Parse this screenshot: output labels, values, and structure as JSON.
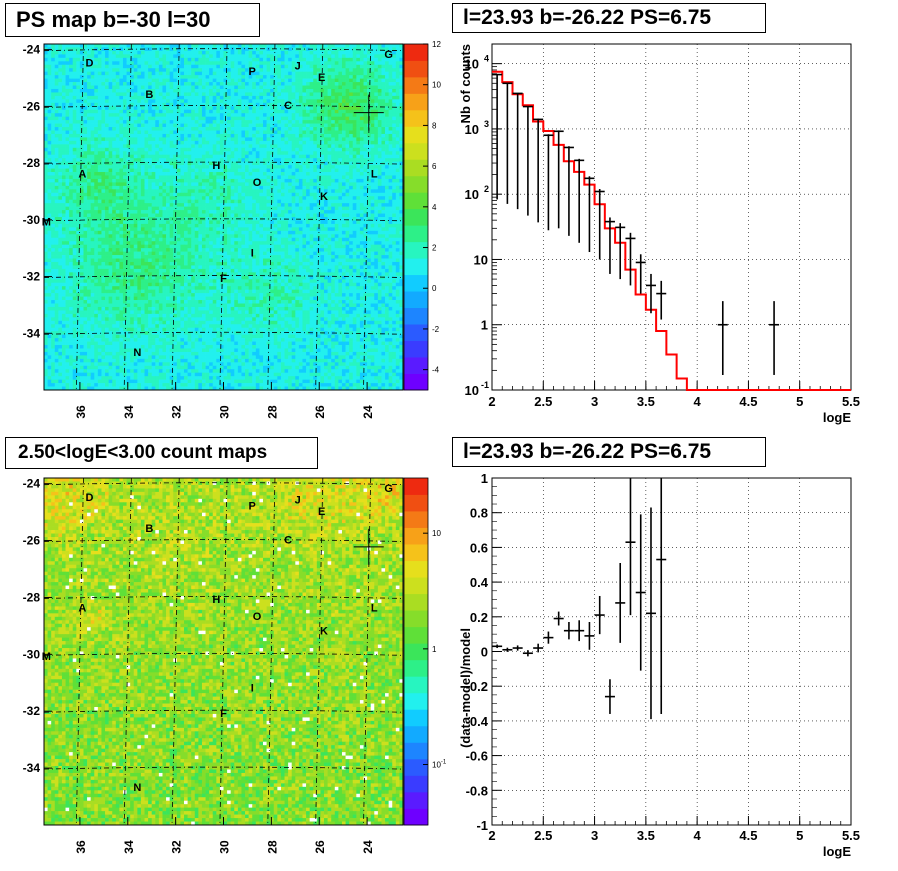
{
  "titles": {
    "top_left": "PS map b=-30 l=30",
    "top_right": "l=23.93 b=-26.22 PS=6.75",
    "bottom_left": "2.50<logE<3.00 count maps",
    "bottom_right": "l=23.93 b=-26.22 PS=6.75"
  },
  "colors": {
    "model_line": "#ff0000",
    "data_points": "#000000",
    "grid": "#000000"
  },
  "chart_data": [
    {
      "type": "heatmap",
      "name": "ps_map",
      "xlim": [
        37.5,
        22.5
      ],
      "ylim": [
        -36,
        -23.8
      ],
      "xticks": [
        "36",
        "34",
        "32",
        "30",
        "28",
        "26",
        "24"
      ],
      "yticks": [
        "-24",
        "-26",
        "-28",
        "-30",
        "-32",
        "-34"
      ],
      "colorbar": {
        "scale": "linear",
        "range": [
          -5,
          12
        ],
        "ticks": [
          "12",
          "10",
          "8",
          "6",
          "4",
          "2",
          "0",
          "-2",
          "-4"
        ]
      },
      "markers": [
        {
          "label": "D",
          "l": 35.6,
          "b": -24.6
        },
        {
          "label": "B",
          "l": 33.1,
          "b": -25.7
        },
        {
          "label": "P",
          "l": 28.8,
          "b": -24.9
        },
        {
          "label": "J",
          "l": 26.9,
          "b": -24.7
        },
        {
          "label": "E",
          "l": 25.9,
          "b": -25.1
        },
        {
          "label": "G",
          "l": 23.1,
          "b": -24.3
        },
        {
          "label": "C",
          "l": 27.3,
          "b": -26.1
        },
        {
          "label": "H",
          "l": 30.3,
          "b": -28.2
        },
        {
          "label": "A",
          "l": 35.9,
          "b": -28.5
        },
        {
          "label": "O",
          "l": 28.6,
          "b": -28.8
        },
        {
          "label": "L",
          "l": 23.7,
          "b": -28.5
        },
        {
          "label": "K",
          "l": 25.8,
          "b": -29.3
        },
        {
          "label": "M",
          "l": 37.4,
          "b": -30.2
        },
        {
          "label": "I",
          "l": 28.8,
          "b": -31.3
        },
        {
          "label": "F",
          "l": 30.0,
          "b": -32.2
        },
        {
          "label": "N",
          "l": 33.6,
          "b": -34.8
        }
      ]
    },
    {
      "type": "line",
      "name": "spectrum",
      "title": "l=23.93 b=-26.22 PS=6.75",
      "xlabel": "logE",
      "ylabel": "Nb of counts",
      "xlim": [
        2,
        5.5
      ],
      "ylim": [
        0.1,
        20000
      ],
      "yscale": "log",
      "xticks": [
        "2",
        "2.5",
        "3",
        "3.5",
        "4",
        "4.5",
        "5",
        "5.5"
      ],
      "grid": true,
      "data": {
        "x": [
          2.05,
          2.15,
          2.25,
          2.35,
          2.45,
          2.55,
          2.65,
          2.75,
          2.85,
          2.95,
          3.05,
          3.15,
          3.25,
          3.35,
          3.45,
          3.55,
          3.65,
          4.25,
          4.75
        ],
        "y": [
          6800,
          5000,
          3500,
          2200,
          1400,
          800,
          920,
          520,
          330,
          175,
          110,
          38,
          31,
          21,
          9,
          4,
          3,
          1,
          1
        ],
        "yerr_low": [
          6717,
          4929,
          3441,
          2153,
          1363,
          772,
          890,
          497,
          312,
          162,
          100,
          32,
          26,
          17,
          6,
          2.5,
          1.8,
          0.83,
          0.83
        ],
        "yerr_high": [
          6883,
          5071,
          3559,
          2247,
          1437,
          828,
          950,
          543,
          348,
          188,
          120,
          44,
          36,
          25.6,
          12,
          6,
          4.7,
          2.3,
          2.3
        ]
      },
      "model": {
        "bins_start": 2.0,
        "bin_width": 0.1,
        "values": [
          7500,
          5200,
          3400,
          2300,
          1300,
          930,
          570,
          320,
          220,
          140,
          70,
          30,
          18,
          7,
          2.9,
          1.7,
          0.8,
          0.35,
          0.15,
          0.1,
          0.1,
          0.1,
          0.1,
          0.1,
          0.1,
          0.1,
          0.1,
          0.1,
          0.1,
          0.1,
          0.1,
          0.1,
          0.1,
          0.1,
          0.1
        ]
      }
    },
    {
      "type": "heatmap",
      "name": "count_map",
      "xlim": [
        37.5,
        22.5
      ],
      "ylim": [
        -36,
        -23.8
      ],
      "xticks": [
        "36",
        "34",
        "32",
        "30",
        "28",
        "26",
        "24"
      ],
      "yticks": [
        "-24",
        "-26",
        "-28",
        "-30",
        "-32",
        "-34"
      ],
      "colorbar": {
        "scale": "log",
        "range": [
          0.03,
          30
        ],
        "ticks": [
          "10",
          "1",
          "10-1"
        ]
      }
    },
    {
      "type": "scatter",
      "name": "residuals",
      "title": "l=23.93 b=-26.22 PS=6.75",
      "xlabel": "logE",
      "ylabel": "(data-model)/model",
      "xlim": [
        2,
        5.5
      ],
      "ylim": [
        -1,
        1
      ],
      "xticks": [
        "2",
        "2.5",
        "3",
        "3.5",
        "4",
        "4.5",
        "5",
        "5.5"
      ],
      "yticks": [
        "1",
        "0.8",
        "0.6",
        "0.4",
        "0.2",
        "0",
        "-0.2",
        "-0.4",
        "-0.6",
        "-0.8",
        "-1"
      ],
      "grid": true,
      "data": {
        "x": [
          2.05,
          2.15,
          2.25,
          2.35,
          2.45,
          2.55,
          2.65,
          2.75,
          2.85,
          2.95,
          3.05,
          3.15,
          3.25,
          3.35,
          3.45,
          3.55,
          3.65
        ],
        "y": [
          0.03,
          0.01,
          0.02,
          -0.01,
          0.02,
          0.08,
          0.19,
          0.12,
          0.12,
          0.09,
          0.21,
          -0.26,
          0.28,
          0.63,
          0.34,
          0.22,
          0.53
        ],
        "yerr": [
          0.01,
          0.012,
          0.015,
          0.018,
          0.025,
          0.035,
          0.04,
          0.05,
          0.06,
          0.08,
          0.11,
          0.1,
          0.23,
          0.42,
          0.45,
          0.61,
          0.89
        ]
      }
    }
  ]
}
